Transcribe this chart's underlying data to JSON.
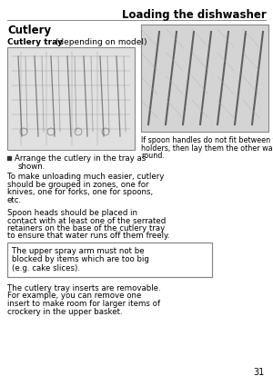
{
  "bg_color": "#ffffff",
  "header_title": "Loading the dishwasher",
  "section_title": "Cutlery",
  "subtitle_bold": "Cutlery tray",
  "subtitle_normal": " (depending on model)",
  "bullet_text": "Arrange the cutlery in the tray as\nshown.",
  "para1": "To make unloading much easier, cutlery\nshould be grouped in zones, one for\nknives, one for forks, one for spoons,\netc.",
  "para2": "Spoon heads should be placed in\ncontact with at least one of the serrated\nretainers on the base of the cutlery tray\nto ensure that water runs off them freely.",
  "box_text": "The upper spray arm must not be\nblocked by items which are too big\n(e.g. cake slices).",
  "para3": "The cutlery tray inserts are removable.\nFor example, you can remove one\ninsert to make room for larger items of\ncrockery in the upper basket.",
  "caption": "If spoon handles do not fit between the\nholders, then lay them the other way\nround.",
  "page_num": "31",
  "header_line_color": "#888888",
  "box_border_color": "#888888",
  "text_color": "#000000",
  "img_border_color": "#888888",
  "img_fill_left": "#cccccc",
  "img_fill_right": "#cccccc"
}
